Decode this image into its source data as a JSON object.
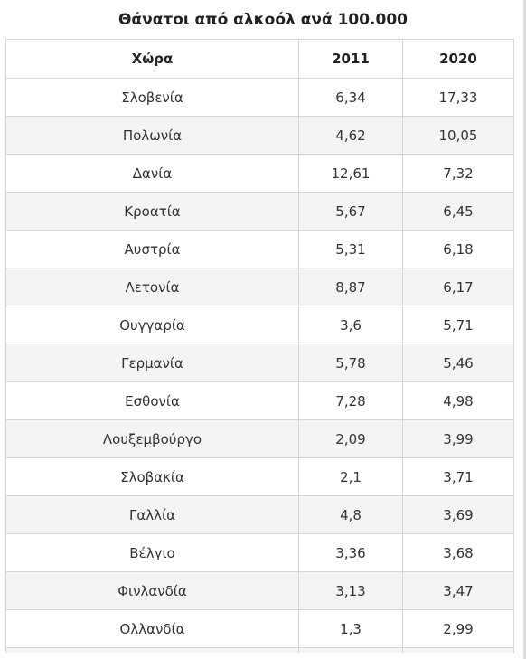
{
  "title": "Θάνατοι από αλκοόλ ανά 100.000",
  "table": {
    "headers": [
      "Χώρα",
      "2011",
      "2020"
    ],
    "rows": [
      [
        "Σλοβενία",
        "6,34",
        "17,33"
      ],
      [
        "Πολωνία",
        "4,62",
        "10,05"
      ],
      [
        "Δανία",
        "12,61",
        "7,32"
      ],
      [
        "Κροατία",
        "5,67",
        "6,45"
      ],
      [
        "Αυστρία",
        "5,31",
        "6,18"
      ],
      [
        "Λετονία",
        "8,87",
        "6,17"
      ],
      [
        "Ουγγαρία",
        "3,6",
        "5,71"
      ],
      [
        "Γερμανία",
        "5,78",
        "5,46"
      ],
      [
        "Εσθονία",
        "7,28",
        "4,98"
      ],
      [
        "Λουξεμβούργο",
        "2,09",
        "3,99"
      ],
      [
        "Σλοβακία",
        "2,1",
        "3,71"
      ],
      [
        "Γαλλία",
        "4,8",
        "3,69"
      ],
      [
        "Βέλγιο",
        "3,36",
        "3,68"
      ],
      [
        "Φινλανδία",
        "3,13",
        "3,47"
      ],
      [
        "Ολλανδία",
        "1,3",
        "2,99"
      ]
    ]
  }
}
